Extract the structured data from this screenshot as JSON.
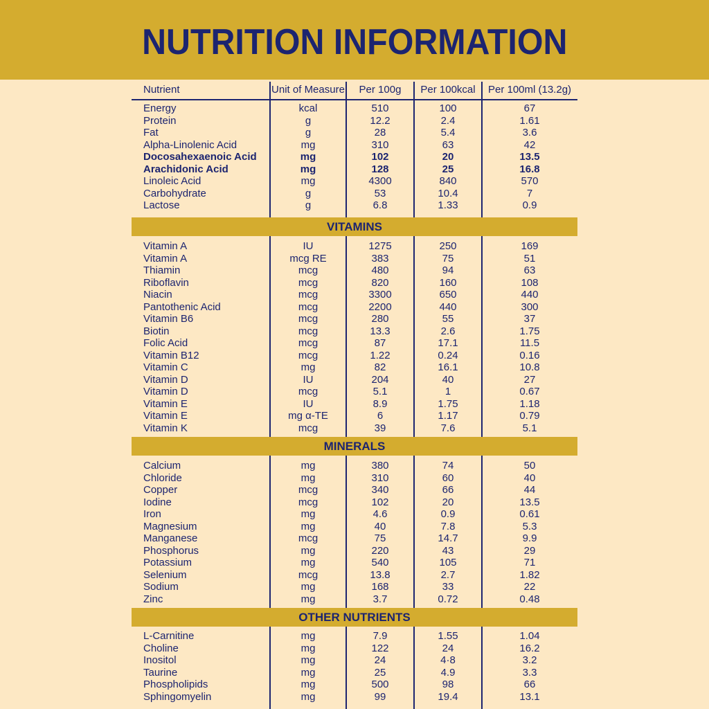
{
  "title": "NUTRITION INFORMATION",
  "columns": [
    "Nutrient",
    "Unit of Measure",
    "Per 100g",
    "Per 100kcal",
    "Per 100ml (13.2g)"
  ],
  "colors": {
    "banner": "#d4ac2f",
    "background": "#fde8c4",
    "text": "#1c2470"
  },
  "sections": [
    {
      "heading": "",
      "rows": [
        {
          "name": "Energy",
          "unit": "kcal",
          "p100g": "510",
          "p100kcal": "100",
          "p100ml": "67",
          "bold": false
        },
        {
          "name": "Protein",
          "unit": "g",
          "p100g": "12.2",
          "p100kcal": "2.4",
          "p100ml": "1.61",
          "bold": false
        },
        {
          "name": "Fat",
          "unit": "g",
          "p100g": "28",
          "p100kcal": "5.4",
          "p100ml": "3.6",
          "bold": false
        },
        {
          "name": "Alpha-Linolenic Acid",
          "unit": "mg",
          "p100g": "310",
          "p100kcal": "63",
          "p100ml": "42",
          "bold": false
        },
        {
          "name": "Docosahexaenoic Acid",
          "unit": "mg",
          "p100g": "102",
          "p100kcal": "20",
          "p100ml": "13.5",
          "bold": true
        },
        {
          "name": "Arachidonic Acid",
          "unit": "mg",
          "p100g": "128",
          "p100kcal": "25",
          "p100ml": "16.8",
          "bold": true
        },
        {
          "name": "Linoleic Acid",
          "unit": "mg",
          "p100g": "4300",
          "p100kcal": "840",
          "p100ml": "570",
          "bold": false
        },
        {
          "name": "Carbohydrate",
          "unit": "g",
          "p100g": "53",
          "p100kcal": "10.4",
          "p100ml": "7",
          "bold": false
        },
        {
          "name": "Lactose",
          "unit": "g",
          "p100g": "6.8",
          "p100kcal": "1.33",
          "p100ml": "0.9",
          "bold": false
        }
      ]
    },
    {
      "heading": "VITAMINS",
      "rows": [
        {
          "name": "Vitamin A",
          "unit": "IU",
          "p100g": "1275",
          "p100kcal": "250",
          "p100ml": "169",
          "bold": false
        },
        {
          "name": "Vitamin A",
          "unit": "mcg RE",
          "p100g": "383",
          "p100kcal": "75",
          "p100ml": "51",
          "bold": false
        },
        {
          "name": "Thiamin",
          "unit": "mcg",
          "p100g": "480",
          "p100kcal": "94",
          "p100ml": "63",
          "bold": false
        },
        {
          "name": "Riboflavin",
          "unit": "mcg",
          "p100g": "820",
          "p100kcal": "160",
          "p100ml": "108",
          "bold": false
        },
        {
          "name": "Niacin",
          "unit": "mcg",
          "p100g": "3300",
          "p100kcal": "650",
          "p100ml": "440",
          "bold": false
        },
        {
          "name": "Pantothenic Acid",
          "unit": "mcg",
          "p100g": "2200",
          "p100kcal": "440",
          "p100ml": "300",
          "bold": false
        },
        {
          "name": "Vitamin B6",
          "unit": "mcg",
          "p100g": "280",
          "p100kcal": "55",
          "p100ml": "37",
          "bold": false
        },
        {
          "name": "Biotin",
          "unit": "mcg",
          "p100g": "13.3",
          "p100kcal": "2.6",
          "p100ml": "1.75",
          "bold": false
        },
        {
          "name": "Folic Acid",
          "unit": "mcg",
          "p100g": "87",
          "p100kcal": "17.1",
          "p100ml": "11.5",
          "bold": false
        },
        {
          "name": "Vitamin B12",
          "unit": "mcg",
          "p100g": "1.22",
          "p100kcal": "0.24",
          "p100ml": "0.16",
          "bold": false
        },
        {
          "name": "Vitamin C",
          "unit": "mg",
          "p100g": "82",
          "p100kcal": "16.1",
          "p100ml": "10.8",
          "bold": false
        },
        {
          "name": "Vitamin D",
          "unit": "IU",
          "p100g": "204",
          "p100kcal": "40",
          "p100ml": "27",
          "bold": false
        },
        {
          "name": "Vitamin D",
          "unit": "mcg",
          "p100g": "5.1",
          "p100kcal": "1",
          "p100ml": "0.67",
          "bold": false
        },
        {
          "name": "Vitamin E",
          "unit": "IU",
          "p100g": "8.9",
          "p100kcal": "1.75",
          "p100ml": "1.18",
          "bold": false
        },
        {
          "name": "Vitamin E",
          "unit": "mg α-TE",
          "p100g": "6",
          "p100kcal": "1.17",
          "p100ml": "0.79",
          "bold": false
        },
        {
          "name": "Vitamin K",
          "unit": "mcg",
          "p100g": "39",
          "p100kcal": "7.6",
          "p100ml": "5.1",
          "bold": false
        }
      ]
    },
    {
      "heading": "MINERALS",
      "rows": [
        {
          "name": "Calcium",
          "unit": "mg",
          "p100g": "380",
          "p100kcal": "74",
          "p100ml": "50",
          "bold": false
        },
        {
          "name": "Chloride",
          "unit": "mg",
          "p100g": "310",
          "p100kcal": "60",
          "p100ml": "40",
          "bold": false
        },
        {
          "name": "Copper",
          "unit": "mcg",
          "p100g": "340",
          "p100kcal": "66",
          "p100ml": "44",
          "bold": false
        },
        {
          "name": "Iodine",
          "unit": "mcg",
          "p100g": "102",
          "p100kcal": "20",
          "p100ml": "13.5",
          "bold": false
        },
        {
          "name": "Iron",
          "unit": "mg",
          "p100g": "4.6",
          "p100kcal": "0.9",
          "p100ml": "0.61",
          "bold": false
        },
        {
          "name": "Magnesium",
          "unit": "mg",
          "p100g": "40",
          "p100kcal": "7.8",
          "p100ml": "5.3",
          "bold": false
        },
        {
          "name": "Manganese",
          "unit": "mcg",
          "p100g": "75",
          "p100kcal": "14.7",
          "p100ml": "9.9",
          "bold": false
        },
        {
          "name": "Phosphorus",
          "unit": "mg",
          "p100g": "220",
          "p100kcal": "43",
          "p100ml": "29",
          "bold": false
        },
        {
          "name": "Potassium",
          "unit": "mg",
          "p100g": "540",
          "p100kcal": "105",
          "p100ml": "71",
          "bold": false
        },
        {
          "name": "Selenium",
          "unit": "mcg",
          "p100g": "13.8",
          "p100kcal": "2.7",
          "p100ml": "1.82",
          "bold": false
        },
        {
          "name": "Sodium",
          "unit": "mg",
          "p100g": "168",
          "p100kcal": "33",
          "p100ml": "22",
          "bold": false
        },
        {
          "name": "Zinc",
          "unit": "mg",
          "p100g": "3.7",
          "p100kcal": "0.72",
          "p100ml": "0.48",
          "bold": false
        }
      ]
    },
    {
      "heading": "OTHER NUTRIENTS",
      "rows": [
        {
          "name": "L-Carnitine",
          "unit": "mg",
          "p100g": "7.9",
          "p100kcal": "1.55",
          "p100ml": "1.04",
          "bold": false
        },
        {
          "name": "Choline",
          "unit": "mg",
          "p100g": "122",
          "p100kcal": "24",
          "p100ml": "16.2",
          "bold": false
        },
        {
          "name": "Inositol",
          "unit": "mg",
          "p100g": "24",
          "p100kcal": "4·8",
          "p100ml": "3.2",
          "bold": false
        },
        {
          "name": "Taurine",
          "unit": "mg",
          "p100g": "25",
          "p100kcal": "4.9",
          "p100ml": "3.3",
          "bold": false
        },
        {
          "name": "Phospholipids",
          "unit": "mg",
          "p100g": "500",
          "p100kcal": "98",
          "p100ml": "66",
          "bold": false
        },
        {
          "name": "Sphingomyelin",
          "unit": "mg",
          "p100g": "99",
          "p100kcal": "19.4",
          "p100ml": "13.1",
          "bold": false
        }
      ]
    }
  ]
}
